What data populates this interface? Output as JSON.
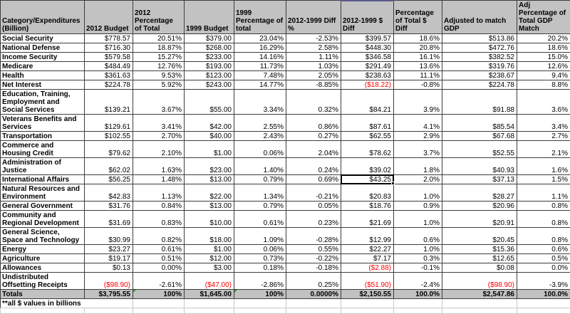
{
  "sheet": {
    "accent_color": "#5b5b8b",
    "header_bg": "#c2c2c2",
    "grid_color": "#3d3d3d",
    "negative_color": "#ff0000",
    "error_triangle_color": "#2f9e2f",
    "selection": {
      "row_index": 11,
      "col_index": 5,
      "value": "$43.25"
    },
    "error_triangles_col_indexes": [
      1,
      3
    ]
  },
  "table": {
    "columns": [
      {
        "label": "Category/Expenditures (Billion)"
      },
      {
        "label": "2012 Budget"
      },
      {
        "label": "2012 Percentage of Total"
      },
      {
        "label": "1999 Budget"
      },
      {
        "label": "1999 Percentage of total"
      },
      {
        "label": "2012-1999 Diff %"
      },
      {
        "label": "2012-1999 $ Diff"
      },
      {
        "label": "Percentage of Total $ Diff"
      },
      {
        "label": "Adjusted to match GDP"
      },
      {
        "label": "Adj Percentage of Total GDP Match"
      }
    ],
    "rows": [
      {
        "category": "Social Security",
        "values": [
          "$778.57",
          "20.51%",
          "$379.00",
          "23.04%",
          "-2.53%",
          "$399.57",
          "18.6%",
          "$513.86",
          "20.2%"
        ]
      },
      {
        "category": "National Defense",
        "values": [
          "$716.30",
          "18.87%",
          "$268.00",
          "16.29%",
          "2.58%",
          "$448.30",
          "20.8%",
          "$472.76",
          "18.6%"
        ]
      },
      {
        "category": "Income Security",
        "values": [
          "$579.58",
          "15.27%",
          "$233.00",
          "14.16%",
          "1.11%",
          "$346.58",
          "16.1%",
          "$382.52",
          "15.0%"
        ]
      },
      {
        "category": "Medicare",
        "values": [
          "$484.49",
          "12.76%",
          "$193.00",
          "11.73%",
          "1.03%",
          "$291.49",
          "13.6%",
          "$319.76",
          "12.6%"
        ]
      },
      {
        "category": "Health",
        "values": [
          "$361.63",
          "9.53%",
          "$123.00",
          "7.48%",
          "2.05%",
          "$238.63",
          "11.1%",
          "$238.67",
          "9.4%"
        ]
      },
      {
        "category": "Net Interest",
        "values": [
          "$224.78",
          "5.92%",
          "$243.00",
          "14.77%",
          "-8.85%",
          "($18.22)",
          "-0.8%",
          "$224.78",
          "8.8%"
        ]
      },
      {
        "category": "Education, Training, Employment and Social Services",
        "values": [
          "$139.21",
          "3.67%",
          "$55.00",
          "3.34%",
          "0.32%",
          "$84.21",
          "3.9%",
          "$91.88",
          "3.6%"
        ]
      },
      {
        "category": "Veterans Benefits and Services",
        "values": [
          "$129.61",
          "3.41%",
          "$42.00",
          "2.55%",
          "0.86%",
          "$87.61",
          "4.1%",
          "$85.54",
          "3.4%"
        ]
      },
      {
        "category": "Transportation",
        "values": [
          "$102.55",
          "2.70%",
          "$40.00",
          "2.43%",
          "0.27%",
          "$62.55",
          "2.9%",
          "$67.68",
          "2.7%"
        ]
      },
      {
        "category": "Commerce and Housing Credit",
        "values": [
          "$79.62",
          "2.10%",
          "$1.00",
          "0.06%",
          "2.04%",
          "$78.62",
          "3.7%",
          "$52.55",
          "2.1%"
        ]
      },
      {
        "category": "Administration of Justice",
        "values": [
          "$62.02",
          "1.63%",
          "$23.00",
          "1.40%",
          "0.24%",
          "$39.02",
          "1.8%",
          "$40.93",
          "1.6%"
        ]
      },
      {
        "category": "International Affairs",
        "values": [
          "$56.25",
          "1.48%",
          "$13.00",
          "0.79%",
          "0.69%",
          "$43.25",
          "2.0%",
          "$37.13",
          "1.5%"
        ]
      },
      {
        "category": "Natural Resources and Environment",
        "values": [
          "$42.83",
          "1.13%",
          "$22.00",
          "1.34%",
          "-0.21%",
          "$20.83",
          "1.0%",
          "$28.27",
          "1.1%"
        ]
      },
      {
        "category": "General Government",
        "values": [
          "$31.76",
          "0.84%",
          "$13.00",
          "0.79%",
          "0.05%",
          "$18.76",
          "0.9%",
          "$20.96",
          "0.8%"
        ]
      },
      {
        "category": "Community and Regional Development",
        "values": [
          "$31.69",
          "0.83%",
          "$10.00",
          "0.61%",
          "0.23%",
          "$21.69",
          "1.0%",
          "$20.91",
          "0.8%"
        ]
      },
      {
        "category": "General Science, Space and Technology",
        "values": [
          "$30.99",
          "0.82%",
          "$18.00",
          "1.09%",
          "-0.28%",
          "$12.99",
          "0.6%",
          "$20.45",
          "0.8%"
        ]
      },
      {
        "category": "Energy",
        "values": [
          "$23.27",
          "0.61%",
          "$1.00",
          "0.06%",
          "0.55%",
          "$22.27",
          "1.0%",
          "$15.36",
          "0.6%"
        ]
      },
      {
        "category": "Agriculture",
        "values": [
          "$19.17",
          "0.51%",
          "$12.00",
          "0.73%",
          "-0.22%",
          "$7.17",
          "0.3%",
          "$12.65",
          "0.5%"
        ]
      },
      {
        "category": "Allowances",
        "values": [
          "$0.13",
          "0.00%",
          "$3.00",
          "0.18%",
          "-0.18%",
          "($2.88)",
          "-0.1%",
          "$0.08",
          "0.0%"
        ]
      },
      {
        "category": "Undistributed Offsetting Receipts",
        "values": [
          "($98.90)",
          "-2.61%",
          "($47.00)",
          "-2.86%",
          "0.25%",
          "($51.90)",
          "-2.4%",
          "($98.90)",
          "-3.9%"
        ]
      }
    ],
    "totals": {
      "category": "Totals",
      "values": [
        "$3,795.55",
        "100%",
        "$1,645.00",
        "100%",
        "0.0000%",
        "$2,150.55",
        "100.0%",
        "$2,547.86",
        "100.0%"
      ]
    },
    "footnote": "**all $ values in billions"
  }
}
